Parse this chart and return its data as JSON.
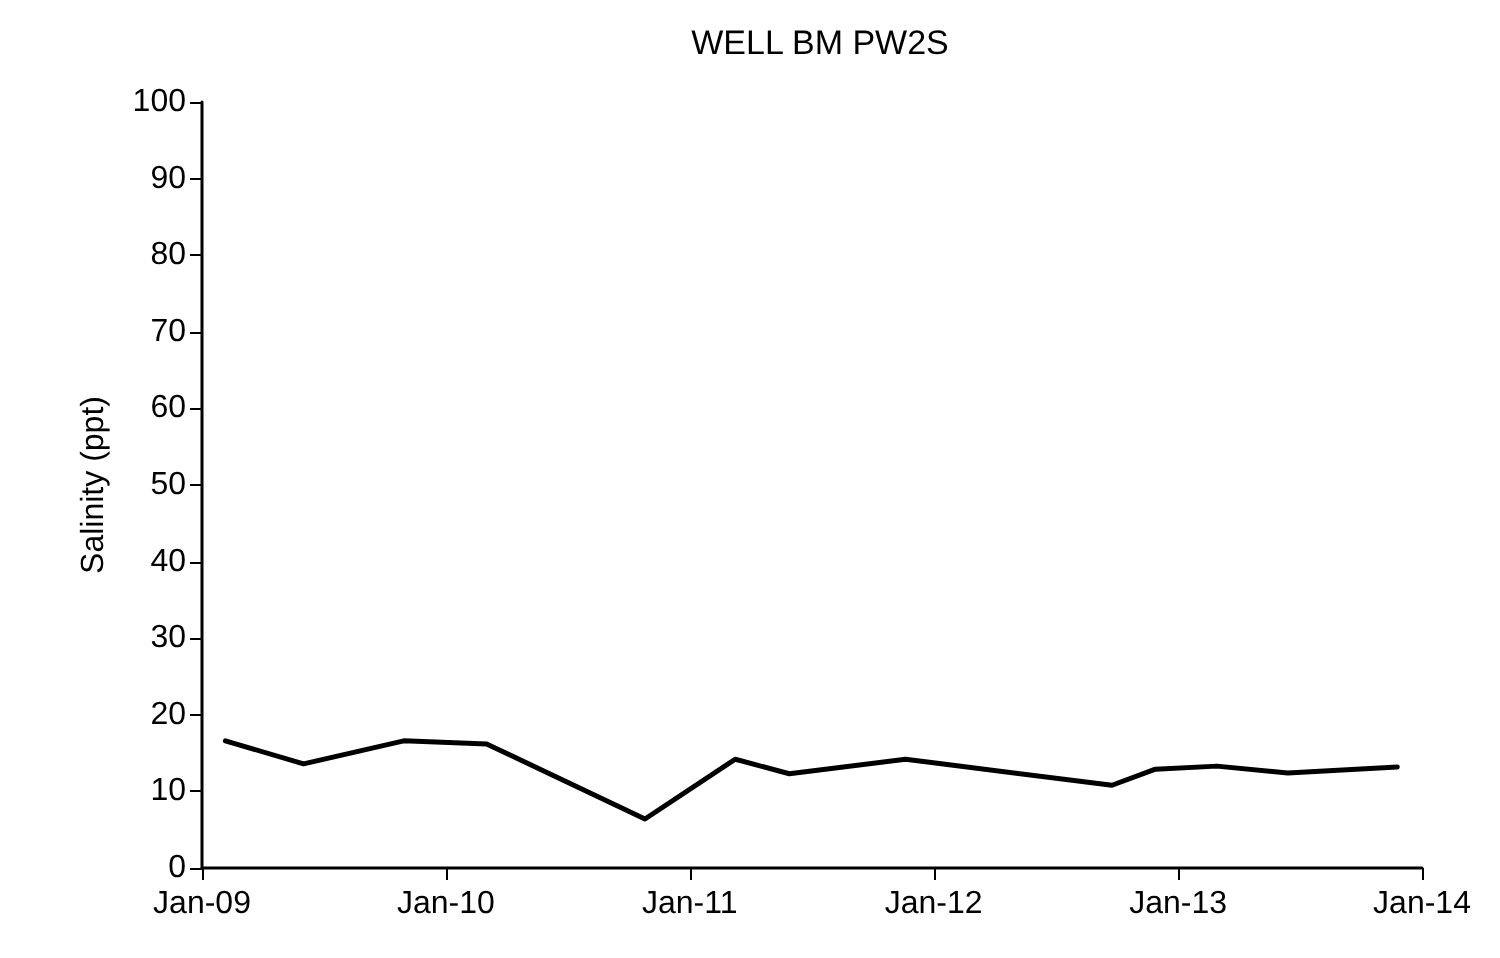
{
  "chart_data": {
    "type": "line",
    "title": "WELL BM PW2S",
    "ylabel": "Salinity (ppt)",
    "x": [
      "2009-02-05",
      "2009-06-02",
      "2009-10-30",
      "2010-03-03",
      "2010-10-26",
      "2011-03-10",
      "2011-05-30",
      "2011-11-20",
      "2012-09-24",
      "2012-11-28",
      "2013-02-28",
      "2013-06-14",
      "2013-11-25"
    ],
    "series": [
      {
        "color": "#000000",
        "values": [
          16.6,
          13.6,
          16.6,
          16.2,
          6.4,
          14.2,
          12.3,
          14.2,
          10.8,
          12.9,
          13.3,
          12.4,
          13.2
        ]
      }
    ],
    "xlim": [
      "2009-01",
      "2014-01"
    ],
    "xticks": [
      {
        "value": "2009-01",
        "label": "Jan-09"
      },
      {
        "value": "2010-01",
        "label": "Jan-10"
      },
      {
        "value": "2011-01",
        "label": "Jan-11"
      },
      {
        "value": "2012-01",
        "label": "Jan-12"
      },
      {
        "value": "2013-01",
        "label": "Jan-13"
      },
      {
        "value": "2014-01",
        "label": "Jan-14"
      }
    ],
    "ylim": [
      0,
      100
    ],
    "yticks": [
      0,
      10,
      20,
      30,
      40,
      50,
      60,
      70,
      80,
      90,
      100
    ],
    "grid": false,
    "marker": "none",
    "line_style": "solid"
  }
}
